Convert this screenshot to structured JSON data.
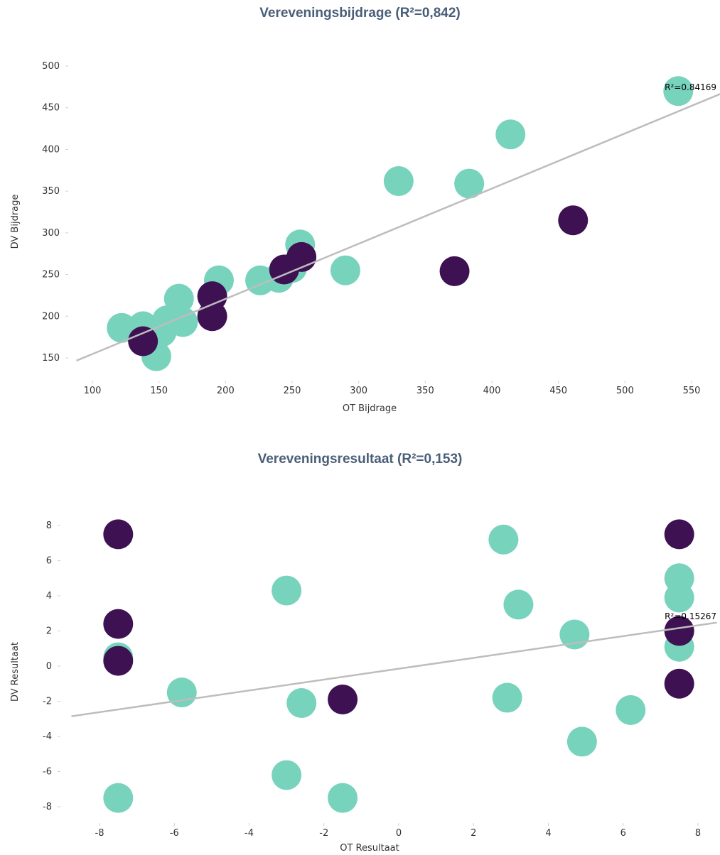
{
  "colors": {
    "mint": "#78d3bd",
    "purple": "#3d1152",
    "trend": "#bdbdbd",
    "title": "#4a5e78"
  },
  "chart_data": [
    {
      "type": "scatter",
      "title": "Vereveningsbijdrage (R²=0,842)",
      "xlabel": "OT Bijdrage",
      "ylabel": "DV Bijdrage",
      "xlim": [
        88,
        1000
      ],
      "ylim": [
        135,
        510
      ],
      "x_ticks": [
        "100",
        "150",
        "200",
        "250",
        "300",
        "350",
        "400",
        "450",
        "500",
        "550"
      ],
      "y_ticks": [
        "150",
        "200",
        "250",
        "300",
        "350",
        "400",
        "450",
        "500"
      ],
      "trendline": {
        "slope": 0.6614,
        "intercept": 88.5,
        "label": "R²=0.84169"
      },
      "grid": false,
      "series": [
        {
          "color": "mint",
          "points": [
            [
              122,
              186
            ],
            [
              138,
              188
            ],
            [
              148,
              152
            ],
            [
              152,
              181
            ],
            [
              156,
              195
            ],
            [
              165,
              221
            ],
            [
              168,
              193
            ],
            [
              195,
              243
            ],
            [
              226,
              243
            ],
            [
              240,
              246
            ],
            [
              250,
              258
            ],
            [
              256,
              286
            ],
            [
              290,
              255
            ],
            [
              330,
              362
            ],
            [
              383,
              359
            ],
            [
              414,
              418
            ],
            [
              540,
              470
            ]
          ]
        },
        {
          "color": "purple",
          "points": [
            [
              138,
              170
            ],
            [
              190,
              224
            ],
            [
              190,
              200
            ],
            [
              244,
              256
            ],
            [
              257,
              271
            ],
            [
              372,
              254
            ],
            [
              461,
              315
            ]
          ]
        }
      ]
    },
    {
      "type": "scatter",
      "title": "Vereveningsresultaat (R²=0,153)",
      "xlabel": "OT Resultaat",
      "ylabel": "DV Resultaat",
      "xlim": [
        -8.75,
        8.5
      ],
      "ylim": [
        -8.7,
        9
      ],
      "x_ticks": [
        "-8",
        "-6",
        "-4",
        "-2",
        "0",
        "2",
        "4",
        "6",
        "8"
      ],
      "y_ticks": [
        "8",
        "6",
        "4",
        "2",
        "0",
        "-2",
        "-4",
        "-6",
        "-8"
      ],
      "trendline": {
        "slope": 0.309,
        "intercept": -0.15,
        "label": "R²=0.15267"
      },
      "grid": false,
      "series": [
        {
          "color": "mint",
          "points": [
            [
              -7.5,
              0.5
            ],
            [
              -7.5,
              -7.5
            ],
            [
              -5.8,
              -1.5
            ],
            [
              -3.0,
              4.3
            ],
            [
              -3.0,
              -6.2
            ],
            [
              -2.6,
              -2.1
            ],
            [
              -1.5,
              -7.5
            ],
            [
              2.8,
              7.2
            ],
            [
              3.2,
              3.5
            ],
            [
              2.9,
              -1.8
            ],
            [
              4.7,
              1.8
            ],
            [
              4.9,
              -4.3
            ],
            [
              6.2,
              -2.5
            ],
            [
              7.5,
              5.0
            ],
            [
              7.5,
              3.9
            ],
            [
              7.5,
              1.1
            ]
          ]
        },
        {
          "color": "purple",
          "points": [
            [
              -7.5,
              7.5
            ],
            [
              -7.5,
              2.4
            ],
            [
              -7.5,
              0.3
            ],
            [
              -1.5,
              -1.9
            ],
            [
              7.5,
              7.5
            ],
            [
              7.5,
              2.0
            ],
            [
              7.5,
              -1.0
            ]
          ]
        }
      ]
    }
  ]
}
